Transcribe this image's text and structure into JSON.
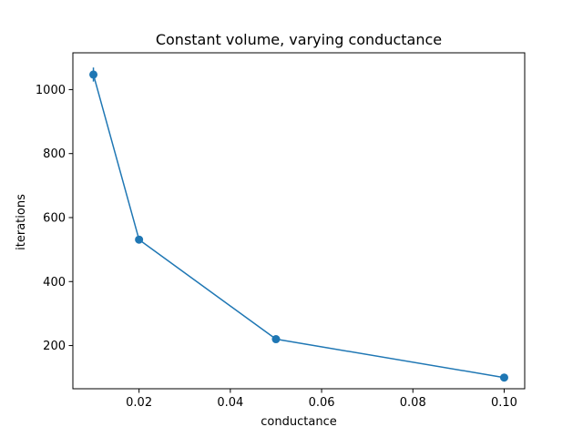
{
  "chart_data": {
    "type": "line",
    "title": "Constant volume, varying conductance",
    "xlabel": "conductance",
    "ylabel": "iterations",
    "xlim": [
      0.0055,
      0.1045
    ],
    "ylim": [
      65,
      1115
    ],
    "grid": false,
    "xticks": [
      0.02,
      0.04,
      0.06,
      0.08,
      0.1
    ],
    "xtick_labels": [
      "0.02",
      "0.04",
      "0.06",
      "0.08",
      "0.10"
    ],
    "yticks": [
      200,
      400,
      600,
      800,
      1000
    ],
    "ytick_labels": [
      "200",
      "400",
      "600",
      "800",
      "1000"
    ],
    "series": [
      {
        "color": "#1f77b4",
        "x": [
          0.01,
          0.02,
          0.05,
          0.1
        ],
        "y": [
          1047,
          531,
          220,
          100
        ],
        "err": [
          22,
          10,
          5,
          3
        ]
      }
    ]
  }
}
